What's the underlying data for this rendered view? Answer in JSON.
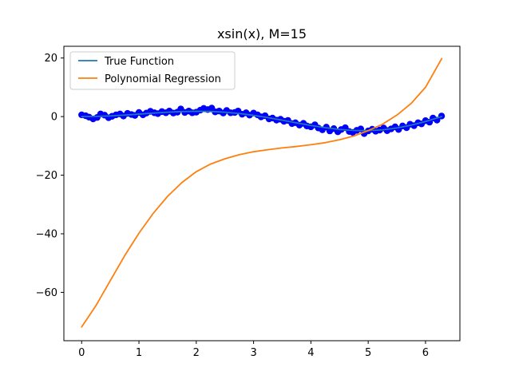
{
  "chart_data": {
    "type": "line",
    "title": "xsin(x), M=15",
    "xlabel": "",
    "ylabel": "",
    "xlim": [
      -0.31,
      6.6
    ],
    "ylim": [
      -76.5,
      24.0
    ],
    "x_ticks": [
      0,
      1,
      2,
      3,
      4,
      5,
      6
    ],
    "y_ticks": [
      20,
      0,
      -20,
      -40,
      -60
    ],
    "x_tick_labels": [
      "0",
      "1",
      "2",
      "3",
      "4",
      "5",
      "6"
    ],
    "y_tick_labels": [
      "20",
      "0",
      "−20",
      "−40",
      "−60"
    ],
    "grid": false,
    "legend": {
      "position": "top-left",
      "entries": [
        {
          "label": "True Function",
          "color": "#1f77b4"
        },
        {
          "label": "Polynomial Regression",
          "color": "#ff7f0e"
        }
      ]
    },
    "series": [
      {
        "name": "True Function",
        "kind": "line",
        "color": "#1f77b4",
        "x": [
          0,
          0.25,
          0.5,
          0.75,
          1.0,
          1.25,
          1.5,
          1.75,
          2.0,
          2.25,
          2.5,
          2.75,
          3.0,
          3.25,
          3.5,
          3.75,
          4.0,
          4.25,
          4.5,
          4.75,
          5.0,
          5.25,
          5.5,
          5.75,
          6.0,
          6.283
        ],
        "y": [
          0.0,
          0.06,
          0.24,
          0.51,
          0.84,
          1.19,
          1.5,
          1.72,
          1.82,
          1.75,
          1.5,
          1.05,
          0.42,
          -0.35,
          -1.23,
          -2.14,
          -3.03,
          -3.79,
          -4.4,
          -4.74,
          -4.79,
          -4.52,
          -3.89,
          -2.92,
          -1.68,
          0.0
        ]
      },
      {
        "name": "",
        "kind": "scatter",
        "color": "#0000ff",
        "x": [
          0.0,
          0.07,
          0.13,
          0.2,
          0.27,
          0.33,
          0.4,
          0.47,
          0.53,
          0.6,
          0.67,
          0.73,
          0.8,
          0.87,
          0.93,
          1.0,
          1.07,
          1.13,
          1.2,
          1.27,
          1.33,
          1.4,
          1.47,
          1.53,
          1.6,
          1.67,
          1.73,
          1.8,
          1.87,
          1.93,
          2.0,
          2.07,
          2.13,
          2.2,
          2.27,
          2.33,
          2.4,
          2.47,
          2.53,
          2.6,
          2.67,
          2.73,
          2.8,
          2.87,
          2.93,
          3.0,
          3.07,
          3.13,
          3.2,
          3.27,
          3.33,
          3.4,
          3.47,
          3.53,
          3.6,
          3.67,
          3.73,
          3.8,
          3.87,
          3.93,
          4.0,
          4.07,
          4.13,
          4.2,
          4.27,
          4.33,
          4.4,
          4.47,
          4.53,
          4.6,
          4.67,
          4.73,
          4.8,
          4.87,
          4.93,
          5.0,
          5.07,
          5.13,
          5.2,
          5.27,
          5.33,
          5.4,
          5.47,
          5.53,
          5.6,
          5.67,
          5.73,
          5.8,
          5.87,
          5.93,
          6.0,
          6.07,
          6.13,
          6.2,
          6.28
        ],
        "y": [
          0.6,
          0.3,
          -0.2,
          -0.8,
          -0.3,
          0.9,
          0.5,
          -0.4,
          0.1,
          0.6,
          0.9,
          0.2,
          1.1,
          0.7,
          0.4,
          1.4,
          0.6,
          1.2,
          1.8,
          1.3,
          1.0,
          1.7,
          1.3,
          1.9,
          1.2,
          1.5,
          2.6,
          1.4,
          1.9,
          1.3,
          1.5,
          2.2,
          2.8,
          2.4,
          2.9,
          1.6,
          1.9,
          1.2,
          2.1,
          1.3,
          1.4,
          1.9,
          0.8,
          1.3,
          0.5,
          1.2,
          0.6,
          -0.1,
          0.3,
          -0.8,
          -0.5,
          -1.2,
          -0.9,
          -1.6,
          -1.3,
          -2.4,
          -2.1,
          -2.9,
          -2.3,
          -3.2,
          -3.5,
          -2.8,
          -3.9,
          -4.5,
          -3.6,
          -4.9,
          -4.1,
          -5.2,
          -4.4,
          -3.8,
          -5.1,
          -5.4,
          -4.7,
          -4.2,
          -5.8,
          -4.9,
          -4.3,
          -5.0,
          -4.6,
          -3.9,
          -4.8,
          -4.2,
          -3.5,
          -4.4,
          -3.2,
          -3.8,
          -2.6,
          -3.1,
          -2.1,
          -2.5,
          -1.4,
          -1.9,
          -0.5,
          -1.2,
          0.2
        ]
      },
      {
        "name": "Polynomial Regression",
        "kind": "line",
        "color": "#ff7f0e",
        "x": [
          0,
          0.25,
          0.5,
          0.75,
          1.0,
          1.25,
          1.5,
          1.75,
          2.0,
          2.25,
          2.5,
          2.75,
          3.0,
          3.25,
          3.5,
          3.75,
          4.0,
          4.25,
          4.5,
          4.75,
          5.0,
          5.25,
          5.5,
          5.75,
          6.0,
          6.283
        ],
        "y": [
          -71.8,
          -64.5,
          -56.0,
          -47.5,
          -39.8,
          -33.0,
          -27.2,
          -22.5,
          -18.8,
          -16.2,
          -14.4,
          -13.0,
          -12.0,
          -11.3,
          -10.7,
          -10.2,
          -9.6,
          -8.9,
          -7.9,
          -6.6,
          -4.8,
          -2.6,
          0.5,
          4.5,
          10.0,
          19.8
        ]
      }
    ]
  }
}
